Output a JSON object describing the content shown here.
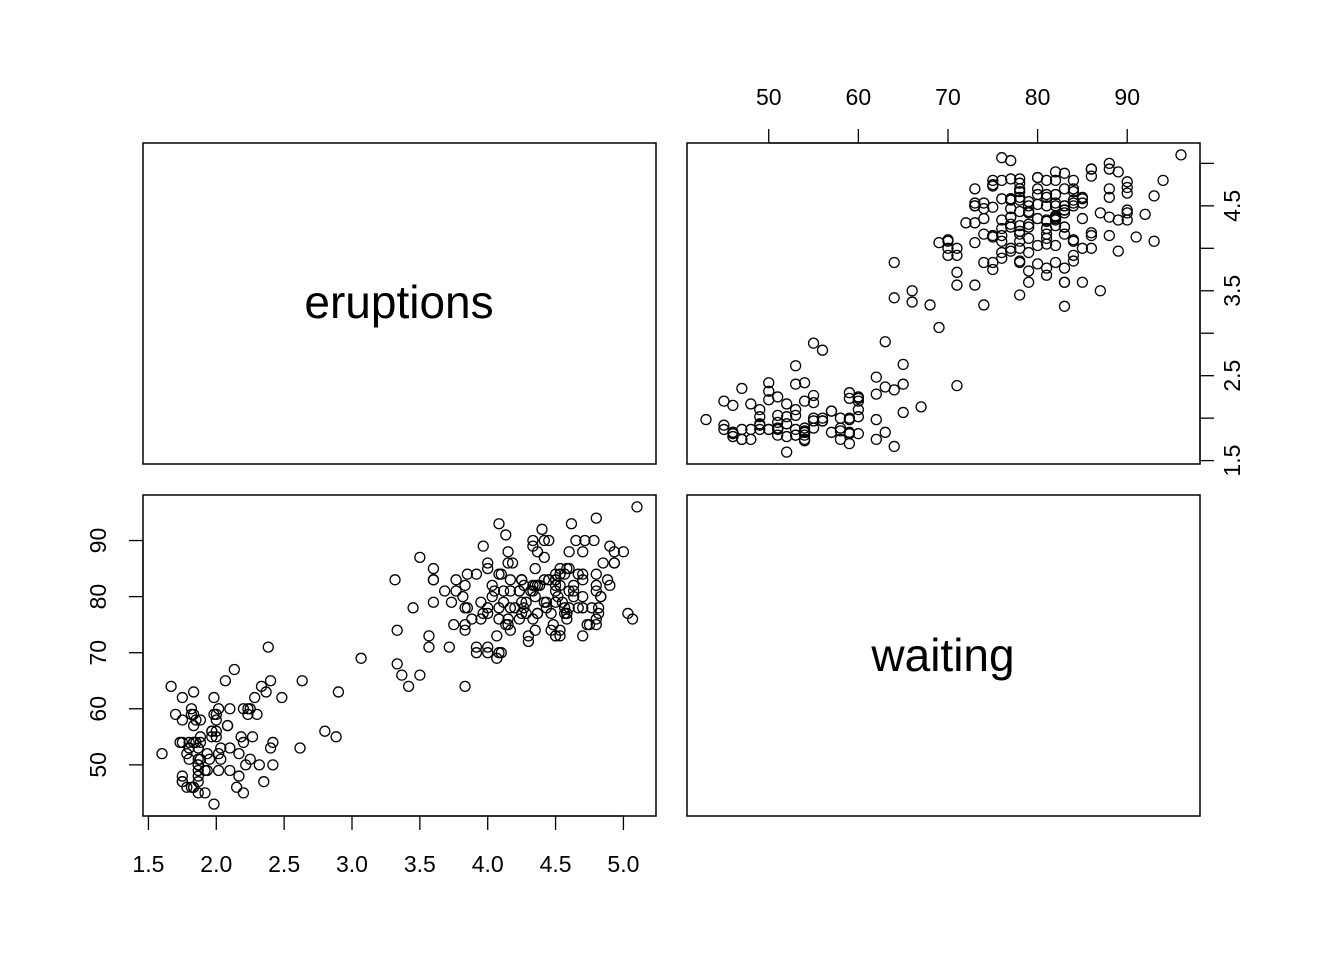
{
  "chart_data": {
    "type": "scatter",
    "variables": [
      "eruptions",
      "waiting"
    ],
    "ranges": {
      "eruptions": [
        1.6,
        5.1
      ],
      "waiting": [
        43,
        96
      ]
    },
    "ticks": {
      "eruptions": [
        "1.5",
        "2.0",
        "2.5",
        "3.0",
        "3.5",
        "4.0",
        "4.5",
        "5.0"
      ],
      "waiting": [
        "50",
        "60",
        "70",
        "80",
        "90"
      ]
    },
    "points": [
      [
        3.6,
        79
      ],
      [
        1.8,
        54
      ],
      [
        3.333,
        74
      ],
      [
        2.283,
        62
      ],
      [
        4.533,
        85
      ],
      [
        2.883,
        55
      ],
      [
        4.7,
        88
      ],
      [
        3.6,
        85
      ],
      [
        1.95,
        51
      ],
      [
        4.35,
        85
      ],
      [
        1.833,
        54
      ],
      [
        3.917,
        84
      ],
      [
        4.2,
        78
      ],
      [
        1.75,
        47
      ],
      [
        4.7,
        83
      ],
      [
        2.167,
        52
      ],
      [
        1.75,
        62
      ],
      [
        4.8,
        84
      ],
      [
        1.6,
        52
      ],
      [
        4.25,
        79
      ],
      [
        1.8,
        51
      ],
      [
        1.75,
        47
      ],
      [
        3.45,
        78
      ],
      [
        3.067,
        69
      ],
      [
        4.533,
        74
      ],
      [
        3.6,
        83
      ],
      [
        1.967,
        55
      ],
      [
        4.083,
        76
      ],
      [
        3.85,
        78
      ],
      [
        4.433,
        79
      ],
      [
        4.3,
        73
      ],
      [
        4.467,
        77
      ],
      [
        3.367,
        66
      ],
      [
        4.033,
        80
      ],
      [
        3.833,
        74
      ],
      [
        2.017,
        52
      ],
      [
        1.867,
        48
      ],
      [
        4.833,
        80
      ],
      [
        1.833,
        59
      ],
      [
        4.783,
        90
      ],
      [
        4.35,
        80
      ],
      [
        1.883,
        58
      ],
      [
        4.567,
        84
      ],
      [
        1.75,
        58
      ],
      [
        4.533,
        73
      ],
      [
        3.317,
        83
      ],
      [
        3.833,
        64
      ],
      [
        2.1,
        53
      ],
      [
        4.633,
        82
      ],
      [
        2.0,
        59
      ],
      [
        4.8,
        75
      ],
      [
        4.716,
        90
      ],
      [
        1.833,
        54
      ],
      [
        4.833,
        80
      ],
      [
        1.733,
        54
      ],
      [
        4.883,
        83
      ],
      [
        3.717,
        71
      ],
      [
        1.667,
        64
      ],
      [
        4.567,
        77
      ],
      [
        4.317,
        81
      ],
      [
        2.233,
        59
      ],
      [
        4.5,
        84
      ],
      [
        1.75,
        48
      ],
      [
        4.8,
        82
      ],
      [
        1.817,
        60
      ],
      [
        4.4,
        92
      ],
      [
        4.167,
        78
      ],
      [
        4.7,
        78
      ],
      [
        2.067,
        65
      ],
      [
        4.7,
        73
      ],
      [
        4.033,
        82
      ],
      [
        1.967,
        56
      ],
      [
        4.5,
        79
      ],
      [
        4.0,
        71
      ],
      [
        1.983,
        62
      ],
      [
        5.067,
        76
      ],
      [
        2.017,
        60
      ],
      [
        4.567,
        78
      ],
      [
        3.883,
        76
      ],
      [
        3.6,
        83
      ],
      [
        4.133,
        75
      ],
      [
        4.333,
        82
      ],
      [
        4.1,
        70
      ],
      [
        2.633,
        65
      ],
      [
        4.067,
        73
      ],
      [
        4.933,
        88
      ],
      [
        3.95,
        76
      ],
      [
        4.517,
        80
      ],
      [
        2.167,
        48
      ],
      [
        4.0,
        86
      ],
      [
        2.2,
        60
      ],
      [
        4.333,
        90
      ],
      [
        1.867,
        50
      ],
      [
        4.817,
        78
      ],
      [
        1.833,
        63
      ],
      [
        4.3,
        72
      ],
      [
        4.667,
        84
      ],
      [
        3.75,
        75
      ],
      [
        1.867,
        51
      ],
      [
        4.9,
        82
      ],
      [
        2.483,
        62
      ],
      [
        4.367,
        88
      ],
      [
        2.1,
        49
      ],
      [
        4.5,
        83
      ],
      [
        4.05,
        81
      ],
      [
        1.867,
        47
      ],
      [
        4.7,
        84
      ],
      [
        1.783,
        52
      ],
      [
        4.85,
        86
      ],
      [
        3.683,
        81
      ],
      [
        4.733,
        75
      ],
      [
        2.3,
        59
      ],
      [
        4.9,
        89
      ],
      [
        4.417,
        79
      ],
      [
        1.7,
        59
      ],
      [
        4.633,
        81
      ],
      [
        2.317,
        50
      ],
      [
        4.6,
        85
      ],
      [
        1.817,
        59
      ],
      [
        4.417,
        87
      ],
      [
        2.617,
        53
      ],
      [
        4.067,
        69
      ],
      [
        4.25,
        77
      ],
      [
        1.967,
        56
      ],
      [
        4.6,
        88
      ],
      [
        3.767,
        81
      ],
      [
        1.917,
        45
      ],
      [
        4.5,
        82
      ],
      [
        2.267,
        55
      ],
      [
        4.65,
        90
      ],
      [
        1.867,
        45
      ],
      [
        4.167,
        83
      ],
      [
        2.8,
        56
      ],
      [
        4.333,
        89
      ],
      [
        1.833,
        46
      ],
      [
        4.383,
        82
      ],
      [
        1.883,
        51
      ],
      [
        4.933,
        86
      ],
      [
        2.033,
        53
      ],
      [
        3.733,
        79
      ],
      [
        4.233,
        81
      ],
      [
        2.233,
        60
      ],
      [
        4.533,
        82
      ],
      [
        4.817,
        77
      ],
      [
        4.333,
        76
      ],
      [
        1.983,
        59
      ],
      [
        4.633,
        80
      ],
      [
        2.017,
        49
      ],
      [
        5.1,
        96
      ],
      [
        1.8,
        53
      ],
      [
        5.033,
        77
      ],
      [
        4.0,
        77
      ],
      [
        2.4,
        65
      ],
      [
        4.6,
        81
      ],
      [
        3.567,
        71
      ],
      [
        4.0,
        70
      ],
      [
        4.5,
        81
      ],
      [
        4.083,
        93
      ],
      [
        1.8,
        53
      ],
      [
        3.967,
        89
      ],
      [
        2.2,
        45
      ],
      [
        4.15,
        86
      ],
      [
        2.0,
        58
      ],
      [
        3.833,
        78
      ],
      [
        3.5,
        66
      ],
      [
        4.583,
        76
      ],
      [
        2.367,
        63
      ],
      [
        5.0,
        88
      ],
      [
        1.933,
        52
      ],
      [
        4.617,
        93
      ],
      [
        1.917,
        49
      ],
      [
        2.083,
        57
      ],
      [
        4.583,
        77
      ],
      [
        3.333,
        68
      ],
      [
        4.167,
        81
      ],
      [
        4.333,
        81
      ],
      [
        4.5,
        73
      ],
      [
        2.417,
        50
      ],
      [
        4.0,
        85
      ],
      [
        4.167,
        74
      ],
      [
        1.883,
        55
      ],
      [
        4.583,
        77
      ],
      [
        4.25,
        83
      ],
      [
        3.767,
        83
      ],
      [
        2.033,
        51
      ],
      [
        4.433,
        78
      ],
      [
        4.083,
        84
      ],
      [
        1.833,
        46
      ],
      [
        4.417,
        83
      ],
      [
        2.183,
        55
      ],
      [
        4.8,
        81
      ],
      [
        1.833,
        57
      ],
      [
        4.8,
        76
      ],
      [
        4.1,
        84
      ],
      [
        3.966,
        77
      ],
      [
        4.233,
        81
      ],
      [
        3.5,
        87
      ],
      [
        4.366,
        77
      ],
      [
        2.25,
        51
      ],
      [
        4.667,
        78
      ],
      [
        2.1,
        60
      ],
      [
        4.35,
        82
      ],
      [
        4.133,
        91
      ],
      [
        1.867,
        53
      ],
      [
        4.6,
        78
      ],
      [
        1.783,
        46
      ],
      [
        4.367,
        77
      ],
      [
        3.85,
        84
      ],
      [
        1.933,
        49
      ],
      [
        4.5,
        83
      ],
      [
        2.383,
        71
      ],
      [
        4.7,
        80
      ],
      [
        1.867,
        49
      ],
      [
        3.833,
        75
      ],
      [
        3.417,
        64
      ],
      [
        4.233,
        76
      ],
      [
        2.4,
        53
      ],
      [
        4.8,
        94
      ],
      [
        2.0,
        55
      ],
      [
        4.15,
        76
      ],
      [
        1.867,
        50
      ],
      [
        4.267,
        82
      ],
      [
        1.75,
        54
      ],
      [
        4.483,
        75
      ],
      [
        4.0,
        78
      ],
      [
        4.117,
        79
      ],
      [
        4.083,
        78
      ],
      [
        4.267,
        78
      ],
      [
        3.917,
        70
      ],
      [
        4.55,
        79
      ],
      [
        4.083,
        70
      ],
      [
        2.417,
        54
      ],
      [
        4.183,
        86
      ],
      [
        2.217,
        50
      ],
      [
        4.45,
        90
      ],
      [
        1.883,
        54
      ],
      [
        1.85,
        54
      ],
      [
        4.283,
        77
      ],
      [
        3.95,
        79
      ],
      [
        2.333,
        64
      ],
      [
        4.15,
        75
      ],
      [
        2.35,
        47
      ],
      [
        4.933,
        86
      ],
      [
        2.9,
        63
      ],
      [
        4.583,
        85
      ],
      [
        3.833,
        82
      ],
      [
        2.083,
        57
      ],
      [
        4.367,
        82
      ],
      [
        2.133,
        67
      ],
      [
        4.35,
        74
      ],
      [
        2.2,
        54
      ],
      [
        4.45,
        83
      ],
      [
        3.567,
        73
      ],
      [
        4.5,
        73
      ],
      [
        4.15,
        88
      ],
      [
        3.817,
        80
      ],
      [
        3.917,
        71
      ],
      [
        4.45,
        83
      ],
      [
        2.0,
        56
      ],
      [
        4.283,
        79
      ],
      [
        4.767,
        78
      ],
      [
        4.533,
        84
      ],
      [
        1.85,
        58
      ],
      [
        4.25,
        83
      ],
      [
        1.983,
        43
      ],
      [
        2.25,
        60
      ],
      [
        4.75,
        75
      ],
      [
        4.117,
        81
      ],
      [
        2.15,
        46
      ],
      [
        4.417,
        90
      ],
      [
        1.817,
        46
      ],
      [
        4.467,
        74
      ]
    ]
  }
}
